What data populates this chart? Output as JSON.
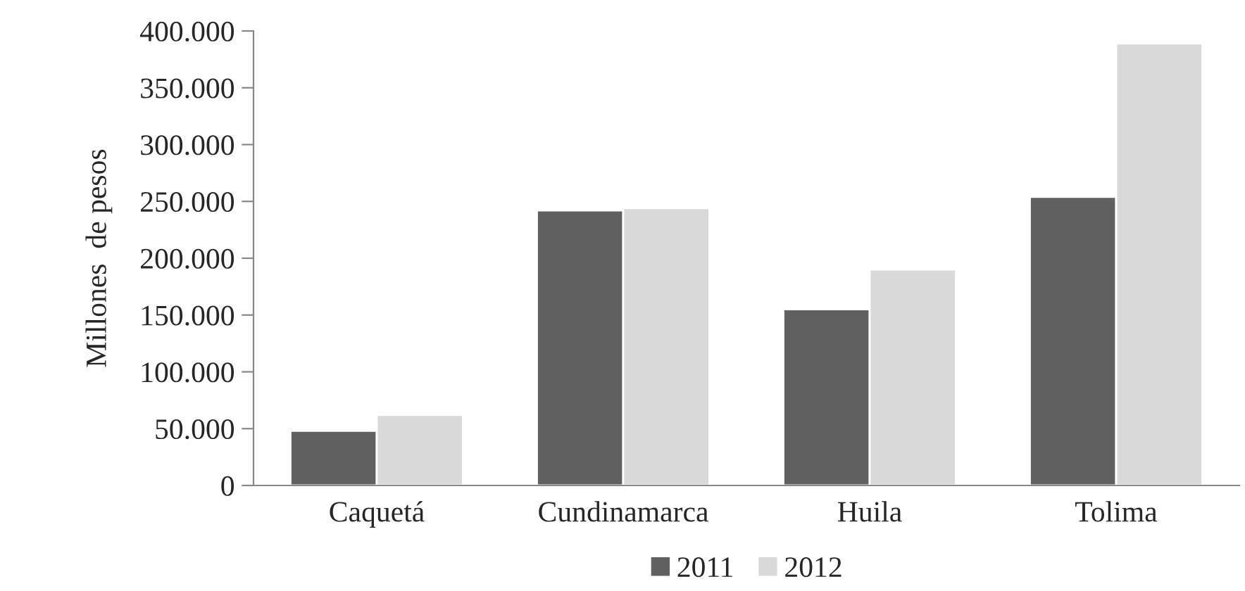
{
  "chart_data": {
    "type": "bar",
    "ylabel": "Millones  de pesos",
    "categories": [
      "Caquetá",
      "Cundinamarca",
      "Huila",
      "Tolima"
    ],
    "series": [
      {
        "name": "2011",
        "color": "#606060",
        "values": [
          48000,
          242000,
          155000,
          254000
        ]
      },
      {
        "name": "2012",
        "color": "#d9d9d9",
        "values": [
          62000,
          244000,
          190000,
          389000
        ]
      }
    ],
    "ylim": [
      0,
      400000
    ],
    "yticks": [
      {
        "value": 0,
        "label": "0"
      },
      {
        "value": 50000,
        "label": "50.000"
      },
      {
        "value": 100000,
        "label": "100.000"
      },
      {
        "value": 150000,
        "label": "150.000"
      },
      {
        "value": 200000,
        "label": "200.000"
      },
      {
        "value": 250000,
        "label": "250.000"
      },
      {
        "value": 300000,
        "label": "300.000"
      },
      {
        "value": 350000,
        "label": "350.000"
      },
      {
        "value": 400000,
        "label": "400.000"
      }
    ],
    "grid": false,
    "legend": "bottom"
  }
}
